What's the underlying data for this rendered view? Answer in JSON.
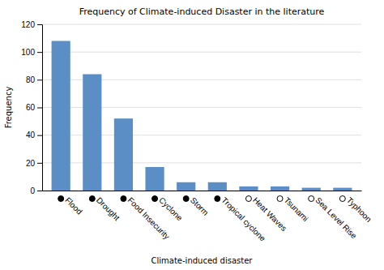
{
  "chart_data": {
    "type": "bar",
    "title": "Frequency of Climate-induced Disaster in the literature",
    "xlabel": "Climate-induced disaster",
    "ylabel": "Frequency",
    "categories": [
      "Flood",
      "Drought",
      "Food Insecurity",
      "Cyclone",
      "Storm",
      "Tropical cyclone",
      "Heat Waves",
      "Tsunami",
      "Sea Level Rise",
      "Typhoon"
    ],
    "values": [
      108,
      84,
      52,
      17,
      6,
      6,
      3,
      3,
      2,
      2
    ],
    "color": "#5b8ec4",
    "marker": "circle",
    "marker_filled": [
      true,
      true,
      true,
      true,
      true,
      true,
      false,
      false,
      false,
      false
    ],
    "ylim": [
      0,
      120
    ],
    "yticks": [
      0,
      20,
      40,
      60,
      80,
      100,
      120
    ],
    "grid": true
  }
}
